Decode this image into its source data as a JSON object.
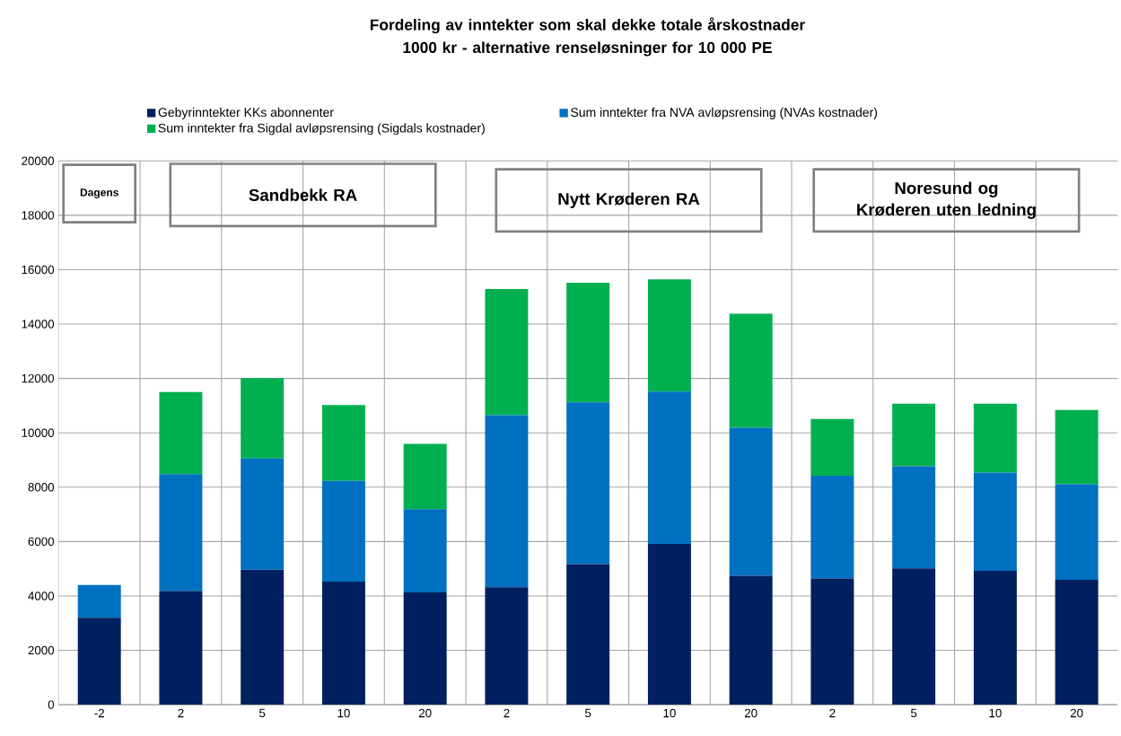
{
  "chart_data": {
    "type": "bar",
    "stacked": true,
    "title": "Fordeling av inntekter som skal dekke totale årskostnader 1000 kr - alternative renseløsninger for 10 000 PE",
    "categories": [
      "-2",
      "2",
      "5",
      "10",
      "20",
      "2",
      "5",
      "10",
      "20",
      "2",
      "5",
      "10",
      "20"
    ],
    "series": [
      {
        "name": "Gebyrinntekter KKs abonnenter",
        "color": "#002060",
        "values": [
          3200,
          4180,
          4960,
          4530,
          4130,
          4320,
          5170,
          5910,
          4740,
          4640,
          5010,
          4920,
          4590
        ]
      },
      {
        "name": "Sum inntekter fra NVA avløpsrensing (NVAs kostnader)",
        "color": "#0070c0",
        "values": [
          1200,
          4300,
          4100,
          3700,
          3060,
          6330,
          5950,
          5610,
          5450,
          3780,
          3760,
          3620,
          3520
        ]
      },
      {
        "name": "Sum inntekter fra Sigdal avløpsrensing (Sigdals kostnader)",
        "color": "#00b050",
        "values": [
          0,
          3020,
          2950,
          2790,
          2400,
          4640,
          4400,
          4120,
          4190,
          2090,
          2300,
          2530,
          2730
        ]
      }
    ],
    "ylim": [
      0,
      20000
    ],
    "yticks": [
      0,
      2000,
      4000,
      6000,
      8000,
      10000,
      12000,
      14000,
      16000,
      18000,
      20000
    ],
    "grid": true,
    "legend": "top",
    "annotations": [
      "Dagens",
      "Sandbekk RA",
      "Nytt Krøderen RA",
      "Noresund og Krøderen uten ledning"
    ]
  }
}
